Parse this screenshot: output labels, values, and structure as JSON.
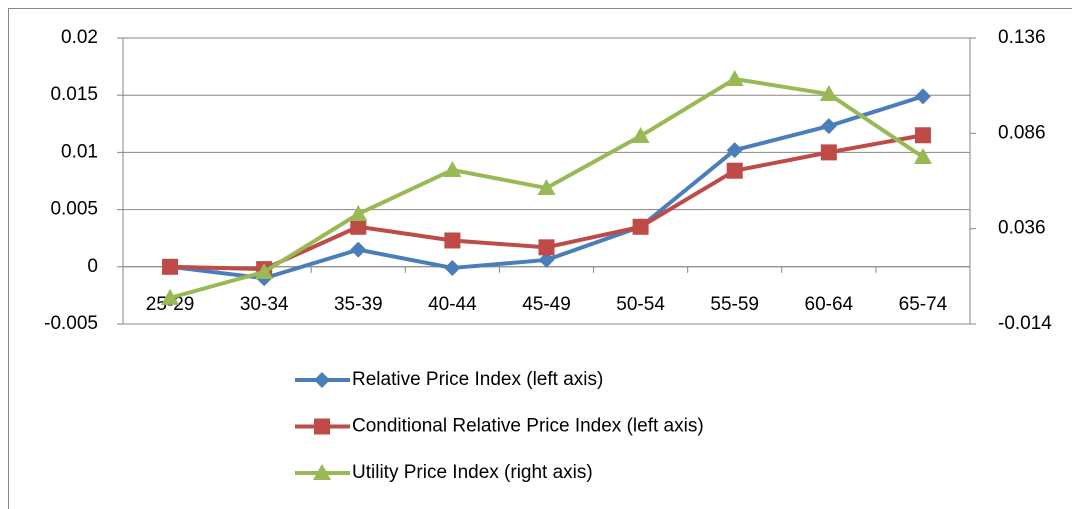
{
  "chart_data": {
    "type": "line",
    "categories": [
      "25-29",
      "30-34",
      "35-39",
      "40-44",
      "45-49",
      "50-54",
      "55-59",
      "60-64",
      "65-74"
    ],
    "series": [
      {
        "name": "Relative Price Index (left axis)",
        "color": "#4a7ebb",
        "marker": "diamond",
        "values": [
          0,
          -0.001,
          0.0015,
          -0.0001,
          0.0006,
          0.0035,
          0.0102,
          0.0123,
          0.0149
        ]
      },
      {
        "name": "Conditional Relative Price Index (left axis)",
        "color": "#be4b48",
        "marker": "square",
        "values": [
          0,
          -0.0002,
          0.0035,
          0.0023,
          0.0017,
          0.0035,
          0.0084,
          0.01,
          0.0115
        ]
      },
      {
        "name": "Utility Price Index (right axis)",
        "color": "#98b954",
        "marker": "triangle",
        "axis": "y2",
        "values": [
          -0.0003,
          0.0133,
          0.0437,
          0.0668,
          0.0573,
          0.0846,
          0.1145,
          0.1066,
          0.0736
        ]
      }
    ],
    "ylim": [
      -0.005,
      0.02
    ],
    "yticks": [
      -0.005,
      0,
      0.005,
      0.01,
      0.015,
      0.02
    ],
    "y2lim": [
      -0.014,
      0.136
    ],
    "y2ticks": [
      -0.014,
      0.036,
      0.086,
      0.136
    ],
    "grid": true,
    "legend": "bottom"
  }
}
